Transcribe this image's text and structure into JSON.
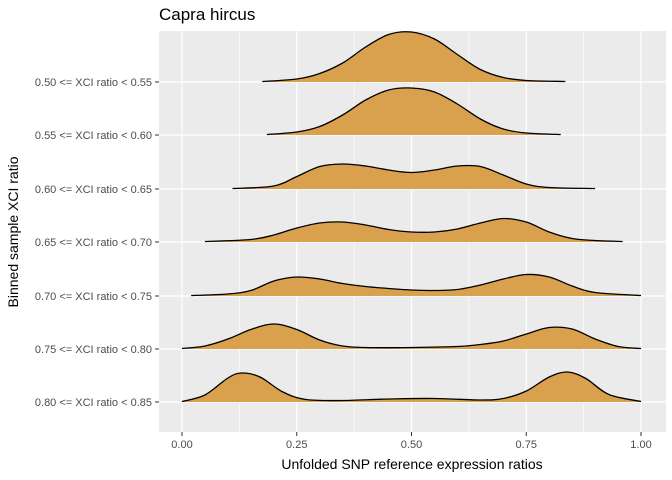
{
  "chart_data": {
    "type": "ridgeline",
    "title": "Capra hircus",
    "xlabel": "Unfolded SNP reference expression ratios",
    "ylabel": "Binned sample XCI ratio",
    "xlim": [
      0,
      1
    ],
    "x_ticks": [
      "0.00",
      "0.25",
      "0.50",
      "0.75",
      "1.00"
    ],
    "x_tick_values": [
      0,
      0.25,
      0.5,
      0.75,
      1.0
    ],
    "fill_color": "#D9A04E",
    "line_color": "#000000",
    "panel_color": "#EBEBEB",
    "grid_color": "#FFFFFF",
    "grid": true,
    "series": [
      {
        "name": "0.50 <= XCI ratio < 0.55",
        "x": [
          0.175,
          0.25,
          0.3,
          0.35,
          0.4,
          0.45,
          0.5,
          0.55,
          0.6,
          0.65,
          0.7,
          0.75,
          0.835
        ],
        "y": [
          0.01,
          0.06,
          0.17,
          0.38,
          0.7,
          0.95,
          1.0,
          0.86,
          0.55,
          0.25,
          0.09,
          0.03,
          0.01
        ]
      },
      {
        "name": "0.55 <= XCI ratio < 0.60",
        "x": [
          0.185,
          0.25,
          0.3,
          0.35,
          0.4,
          0.45,
          0.5,
          0.55,
          0.6,
          0.65,
          0.7,
          0.75,
          0.825
        ],
        "y": [
          0.01,
          0.06,
          0.17,
          0.4,
          0.7,
          0.9,
          0.94,
          0.86,
          0.62,
          0.32,
          0.12,
          0.04,
          0.01
        ]
      },
      {
        "name": "0.60 <= XCI ratio < 0.65",
        "x": [
          0.11,
          0.2,
          0.25,
          0.3,
          0.35,
          0.4,
          0.45,
          0.5,
          0.55,
          0.6,
          0.65,
          0.7,
          0.75,
          0.8,
          0.9
        ],
        "y": [
          0.01,
          0.06,
          0.25,
          0.45,
          0.5,
          0.46,
          0.38,
          0.33,
          0.38,
          0.46,
          0.45,
          0.28,
          0.1,
          0.03,
          0.01
        ]
      },
      {
        "name": "0.65 <= XCI ratio < 0.70",
        "x": [
          0.05,
          0.15,
          0.2,
          0.25,
          0.3,
          0.35,
          0.4,
          0.45,
          0.5,
          0.55,
          0.6,
          0.65,
          0.7,
          0.75,
          0.8,
          0.85,
          0.9,
          0.96
        ],
        "y": [
          0.01,
          0.05,
          0.14,
          0.28,
          0.38,
          0.4,
          0.34,
          0.25,
          0.2,
          0.2,
          0.26,
          0.38,
          0.47,
          0.4,
          0.2,
          0.07,
          0.03,
          0.01
        ]
      },
      {
        "name": "0.70 <= XCI ratio < 0.75",
        "x": [
          0.02,
          0.1,
          0.15,
          0.2,
          0.25,
          0.3,
          0.35,
          0.4,
          0.45,
          0.5,
          0.55,
          0.6,
          0.65,
          0.7,
          0.75,
          0.8,
          0.85,
          0.9,
          1.0
        ],
        "y": [
          0.01,
          0.04,
          0.11,
          0.3,
          0.38,
          0.34,
          0.25,
          0.19,
          0.15,
          0.12,
          0.11,
          0.13,
          0.22,
          0.34,
          0.43,
          0.38,
          0.2,
          0.07,
          0.01
        ]
      },
      {
        "name": "0.75 <= XCI ratio < 0.80",
        "x": [
          0.0,
          0.05,
          0.1,
          0.15,
          0.2,
          0.25,
          0.3,
          0.35,
          0.4,
          0.5,
          0.6,
          0.65,
          0.7,
          0.75,
          0.8,
          0.85,
          0.9,
          0.95,
          1.0
        ],
        "y": [
          0.01,
          0.06,
          0.2,
          0.39,
          0.5,
          0.39,
          0.18,
          0.06,
          0.03,
          0.03,
          0.05,
          0.09,
          0.16,
          0.3,
          0.43,
          0.4,
          0.2,
          0.05,
          0.01
        ]
      },
      {
        "name": "0.80 <= XCI ratio < 0.85",
        "x": [
          0.0,
          0.05,
          0.1,
          0.13,
          0.17,
          0.22,
          0.27,
          0.35,
          0.45,
          0.55,
          0.65,
          0.7,
          0.75,
          0.8,
          0.84,
          0.88,
          0.93,
          1.0
        ],
        "y": [
          0.01,
          0.14,
          0.48,
          0.58,
          0.5,
          0.2,
          0.05,
          0.03,
          0.06,
          0.07,
          0.04,
          0.07,
          0.22,
          0.5,
          0.6,
          0.47,
          0.15,
          0.01
        ]
      }
    ]
  }
}
